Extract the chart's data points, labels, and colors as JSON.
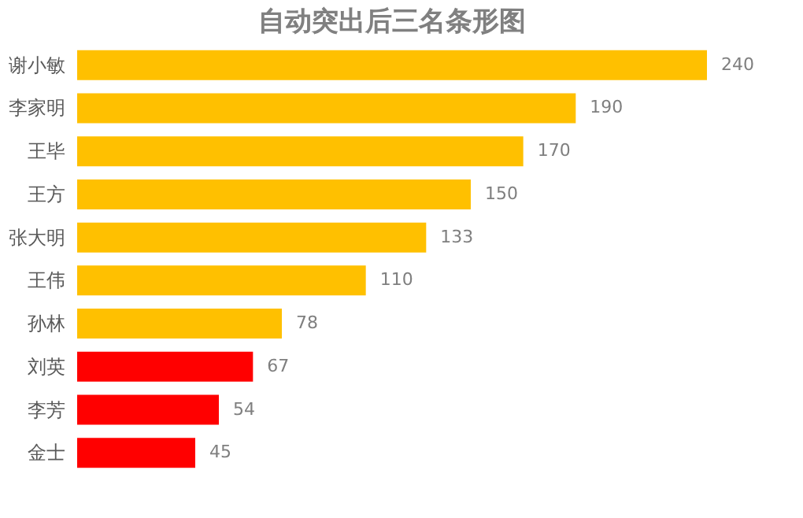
{
  "chart_data": {
    "type": "bar",
    "orientation": "horizontal",
    "title": "自动突出后三名条形图",
    "categories": [
      "谢小敏",
      "李家明",
      "王毕",
      "王方",
      "张大明",
      "王伟",
      "孙林",
      "刘英",
      "李芳",
      "金士"
    ],
    "values": [
      240,
      190,
      170,
      150,
      133,
      110,
      78,
      67,
      54,
      45
    ],
    "colors": [
      "#ffc000",
      "#ffc000",
      "#ffc000",
      "#ffc000",
      "#ffc000",
      "#ffc000",
      "#ffc000",
      "#ff0000",
      "#ff0000",
      "#ff0000"
    ],
    "data_labels": true,
    "grid": false
  }
}
